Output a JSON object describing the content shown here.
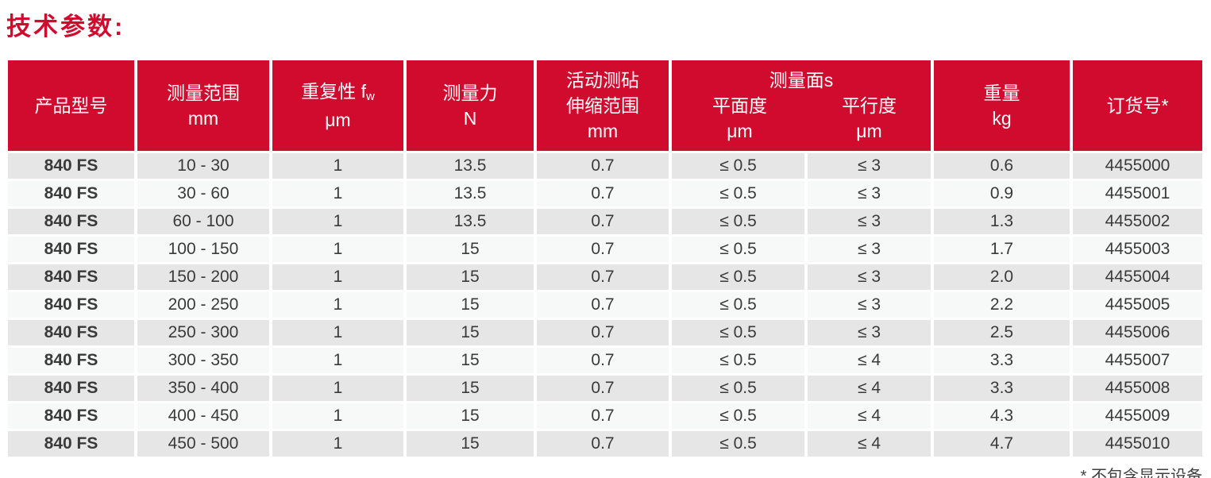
{
  "colors": {
    "accent_red": "#d00b2e",
    "row_odd_gray": "#e6e6e6",
    "row_even_gray": "#f7f8f8",
    "body_text": "#3a3a3a"
  },
  "page": {
    "title": "技术参数:",
    "footnote": "* 不包含显示设备"
  },
  "table": {
    "headers": {
      "product_model": "产品型号",
      "measuring_range": {
        "label": "测量范围",
        "unit": "mm"
      },
      "repeatability": {
        "label": "重复性 f",
        "sub": "w",
        "unit": "μm"
      },
      "measuring_force": {
        "label": "测量力",
        "unit": "N"
      },
      "anvil_travel": {
        "line1": "活动测砧",
        "line2": "伸缩范围",
        "unit": "mm"
      },
      "measuring_faces": {
        "title": "测量面s",
        "flatness": {
          "label": "平面度",
          "unit": "μm"
        },
        "parallelism": {
          "label": "平行度",
          "unit": "μm"
        }
      },
      "weight": {
        "label": "重量",
        "unit": "kg"
      },
      "order_no": "订货号*"
    },
    "rows": [
      {
        "model": "840 FS",
        "range": "10 - 30",
        "repeatability": "1",
        "force": "13.5",
        "anvil": "0.7",
        "flatness": "≤ 0.5",
        "parallelism": "≤ 3",
        "weight": "0.6",
        "order": "4455000"
      },
      {
        "model": "840 FS",
        "range": "30 - 60",
        "repeatability": "1",
        "force": "13.5",
        "anvil": "0.7",
        "flatness": "≤ 0.5",
        "parallelism": "≤ 3",
        "weight": "0.9",
        "order": "4455001"
      },
      {
        "model": "840 FS",
        "range": "60 - 100",
        "repeatability": "1",
        "force": "13.5",
        "anvil": "0.7",
        "flatness": "≤ 0.5",
        "parallelism": "≤ 3",
        "weight": "1.3",
        "order": "4455002"
      },
      {
        "model": "840 FS",
        "range": "100 - 150",
        "repeatability": "1",
        "force": "15",
        "anvil": "0.7",
        "flatness": "≤ 0.5",
        "parallelism": "≤ 3",
        "weight": "1.7",
        "order": "4455003"
      },
      {
        "model": "840 FS",
        "range": "150 - 200",
        "repeatability": "1",
        "force": "15",
        "anvil": "0.7",
        "flatness": "≤ 0.5",
        "parallelism": "≤ 3",
        "weight": "2.0",
        "order": "4455004"
      },
      {
        "model": "840 FS",
        "range": "200 - 250",
        "repeatability": "1",
        "force": "15",
        "anvil": "0.7",
        "flatness": "≤ 0.5",
        "parallelism": "≤ 3",
        "weight": "2.2",
        "order": "4455005"
      },
      {
        "model": "840 FS",
        "range": "250 - 300",
        "repeatability": "1",
        "force": "15",
        "anvil": "0.7",
        "flatness": "≤ 0.5",
        "parallelism": "≤ 3",
        "weight": "2.5",
        "order": "4455006"
      },
      {
        "model": "840 FS",
        "range": "300 - 350",
        "repeatability": "1",
        "force": "15",
        "anvil": "0.7",
        "flatness": "≤ 0.5",
        "parallelism": "≤ 4",
        "weight": "3.3",
        "order": "4455007"
      },
      {
        "model": "840 FS",
        "range": "350 - 400",
        "repeatability": "1",
        "force": "15",
        "anvil": "0.7",
        "flatness": "≤ 0.5",
        "parallelism": "≤ 4",
        "weight": "3.3",
        "order": "4455008"
      },
      {
        "model": "840 FS",
        "range": "400 - 450",
        "repeatability": "1",
        "force": "15",
        "anvil": "0.7",
        "flatness": "≤ 0.5",
        "parallelism": "≤ 4",
        "weight": "4.3",
        "order": "4455009"
      },
      {
        "model": "840 FS",
        "range": "450 - 500",
        "repeatability": "1",
        "force": "15",
        "anvil": "0.7",
        "flatness": "≤ 0.5",
        "parallelism": "≤ 4",
        "weight": "4.7",
        "order": "4455010"
      }
    ]
  }
}
